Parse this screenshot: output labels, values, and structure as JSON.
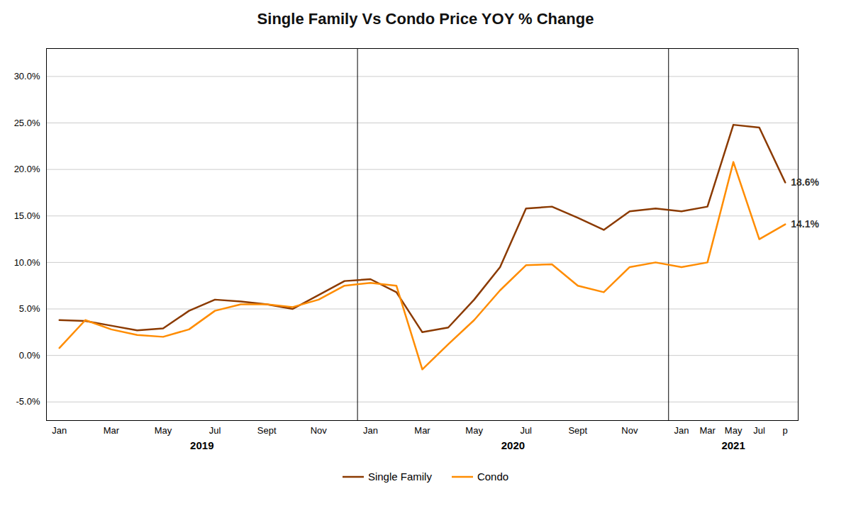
{
  "chart_data": {
    "type": "line",
    "title": "Single Family Vs Condo Price YOY % Change",
    "categories": [
      "Jan",
      null,
      "Mar",
      null,
      "May",
      null,
      "Jul",
      null,
      "Sept",
      null,
      "Nov",
      null,
      "Jan",
      null,
      "Mar",
      null,
      "May",
      null,
      "Jul",
      null,
      "Sept",
      null,
      "Nov",
      null,
      "Jan",
      "Mar",
      "May",
      "Jul",
      "p"
    ],
    "series": [
      {
        "name": "Single Family",
        "color": "#8B3A00",
        "values": [
          0.038,
          0.037,
          0.032,
          0.027,
          0.029,
          0.048,
          0.06,
          0.058,
          0.055,
          0.05,
          0.065,
          0.08,
          0.082,
          0.068,
          0.025,
          0.03,
          0.06,
          0.095,
          0.158,
          0.16,
          0.148,
          0.135,
          0.155,
          0.158,
          0.155,
          0.16,
          0.248,
          0.245,
          0.186
        ],
        "value_labels": [
          null,
          null,
          null,
          null,
          null,
          null,
          null,
          null,
          null,
          null,
          null,
          null,
          null,
          null,
          null,
          null,
          null,
          null,
          null,
          null,
          null,
          null,
          null,
          null,
          null,
          null,
          null,
          null,
          "18.6%"
        ]
      },
      {
        "name": "Condo",
        "color": "#FF8C00",
        "values": [
          0.008,
          0.038,
          0.028,
          0.022,
          0.02,
          0.028,
          0.048,
          0.055,
          0.055,
          0.052,
          0.06,
          0.075,
          0.078,
          0.075,
          -0.015,
          0.012,
          0.038,
          0.07,
          0.097,
          0.098,
          0.075,
          0.068,
          0.095,
          0.1,
          0.095,
          0.1,
          0.208,
          0.125,
          0.141
        ],
        "value_labels": [
          null,
          null,
          null,
          null,
          null,
          null,
          null,
          null,
          null,
          null,
          null,
          null,
          null,
          null,
          null,
          null,
          null,
          null,
          null,
          null,
          null,
          null,
          null,
          null,
          null,
          null,
          null,
          null,
          "14.1%"
        ]
      }
    ],
    "annotations": [
      "2019",
      "2020",
      "2021"
    ],
    "data_labels": true,
    "ylim": [
      -0.07,
      0.33
    ],
    "yticks": [
      {
        "value": -0.05,
        "label": "-5.0%"
      },
      {
        "value": 0.0,
        "label": "0.0%"
      },
      {
        "value": 0.05,
        "label": "5.0%"
      },
      {
        "value": 0.1,
        "label": "10.0%"
      },
      {
        "value": 0.15,
        "label": "15.0%"
      },
      {
        "value": 0.2,
        "label": "20.0%"
      },
      {
        "value": 0.25,
        "label": "25.0%"
      },
      {
        "value": 0.3,
        "label": "30.0%"
      }
    ],
    "grid": true,
    "legend": "bottom"
  }
}
